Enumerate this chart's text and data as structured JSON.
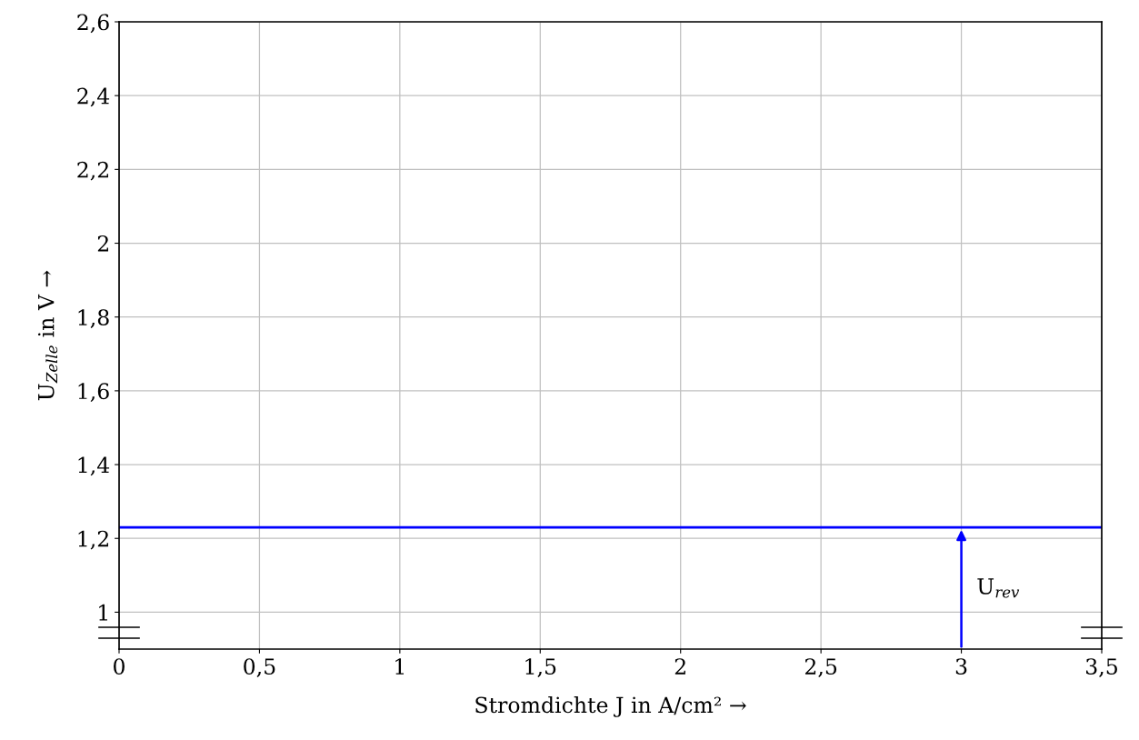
{
  "chart_data": {
    "type": "line",
    "xlabel": "Stromdichte J in A/cm² →",
    "ylabel": "U$_{Zelle}$ in V →",
    "x": [
      0,
      3.5
    ],
    "series": [
      {
        "color": "#0000ff",
        "values": [
          1.23,
          1.23
        ]
      }
    ],
    "line_style": "solid",
    "xlim": [
      0,
      3.5
    ],
    "ylim": [
      0.9,
      2.6
    ],
    "xticks": [
      0,
      {
        "value": 0.5,
        "label": "0,5"
      },
      1,
      {
        "value": 1.5,
        "label": "1,5"
      },
      2,
      {
        "value": 2.5,
        "label": "2,5"
      },
      3,
      {
        "value": 3.5,
        "label": "3,5"
      }
    ],
    "yticks": [
      1,
      {
        "value": 1.2,
        "label": "1,2"
      },
      {
        "value": 1.4,
        "label": "1,4"
      },
      {
        "value": 1.6,
        "label": "1,6"
      },
      {
        "value": 1.8,
        "label": "1,8"
      },
      2,
      {
        "value": 2.2,
        "label": "2,2"
      },
      {
        "value": 2.4,
        "label": "2,4"
      },
      {
        "value": 2.6,
        "label": "2,6"
      }
    ],
    "annotations": [
      {
        "text": "U$_{rev}$",
        "x": 3,
        "y": 1.23
      }
    ],
    "grid": true
  }
}
